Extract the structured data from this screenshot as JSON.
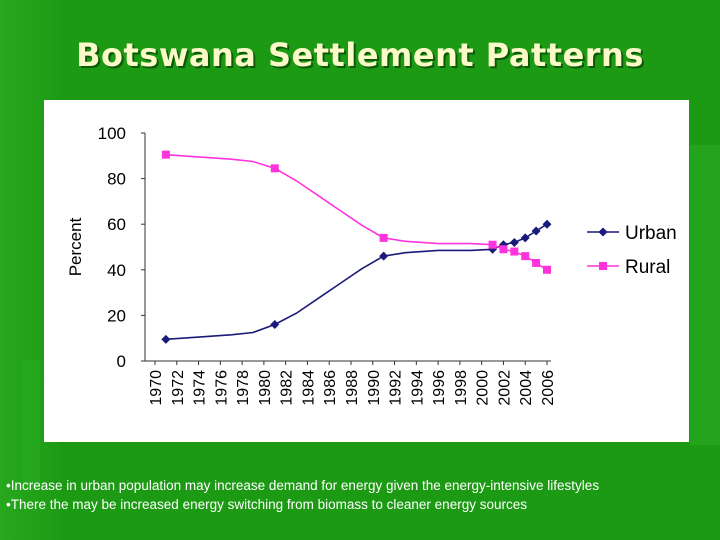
{
  "slide": {
    "title": "Botswana Settlement Patterns",
    "bullets": [
      "•Increase in urban population may increase demand for energy given the energy-intensive lifestyles",
      "•There the may be increased energy switching from biomass to cleaner energy sources"
    ]
  },
  "colors": {
    "background": "#1c9a14",
    "title": "#fafac8",
    "urban": "#1a1a7a",
    "rural": "#ff33dd"
  },
  "chart_data": {
    "type": "line",
    "title": "",
    "xlabel": "",
    "ylabel": "Percent",
    "ylim": [
      0,
      100
    ],
    "yticks": [
      0,
      20,
      40,
      60,
      80,
      100
    ],
    "xlim": [
      1970,
      2006
    ],
    "xticks": [
      1970,
      1972,
      1974,
      1976,
      1978,
      1980,
      1982,
      1984,
      1986,
      1988,
      1990,
      1992,
      1994,
      1996,
      1998,
      2000,
      2002,
      2004,
      2006
    ],
    "legend_position": "right",
    "series": [
      {
        "name": "Urban",
        "marker": "diamond",
        "points": [
          [
            1971,
            9.5
          ],
          [
            1981,
            16
          ],
          [
            1991,
            46
          ],
          [
            2001,
            49
          ],
          [
            2002,
            51
          ],
          [
            2003,
            52
          ],
          [
            2004,
            54
          ],
          [
            2005,
            57
          ],
          [
            2006,
            60
          ]
        ],
        "curve": [
          [
            1971,
            9.5
          ],
          [
            1974,
            10.5
          ],
          [
            1977,
            11.5
          ],
          [
            1979,
            12.5
          ],
          [
            1981,
            16
          ],
          [
            1983,
            21
          ],
          [
            1985,
            27.5
          ],
          [
            1987,
            34
          ],
          [
            1989,
            40.5
          ],
          [
            1991,
            46
          ],
          [
            1993,
            47.5
          ],
          [
            1996,
            48.5
          ],
          [
            1999,
            48.5
          ],
          [
            2001,
            49
          ],
          [
            2002,
            51
          ],
          [
            2003,
            52
          ],
          [
            2004,
            54
          ],
          [
            2005,
            57
          ],
          [
            2006,
            60
          ]
        ]
      },
      {
        "name": "Rural",
        "marker": "square",
        "points": [
          [
            1971,
            90.5
          ],
          [
            1981,
            84.5
          ],
          [
            1991,
            54
          ],
          [
            2001,
            51
          ],
          [
            2002,
            49
          ],
          [
            2003,
            48
          ],
          [
            2004,
            46
          ],
          [
            2005,
            43
          ],
          [
            2006,
            40
          ]
        ],
        "curve": [
          [
            1971,
            90.5
          ],
          [
            1974,
            89.5
          ],
          [
            1977,
            88.5
          ],
          [
            1979,
            87.5
          ],
          [
            1981,
            84.5
          ],
          [
            1983,
            79
          ],
          [
            1985,
            72.5
          ],
          [
            1987,
            66
          ],
          [
            1989,
            59.5
          ],
          [
            1991,
            54
          ],
          [
            1993,
            52.5
          ],
          [
            1996,
            51.5
          ],
          [
            1999,
            51.5
          ],
          [
            2001,
            51
          ],
          [
            2002,
            49
          ],
          [
            2003,
            48
          ],
          [
            2004,
            46
          ],
          [
            2005,
            43
          ],
          [
            2006,
            40
          ]
        ]
      }
    ]
  }
}
